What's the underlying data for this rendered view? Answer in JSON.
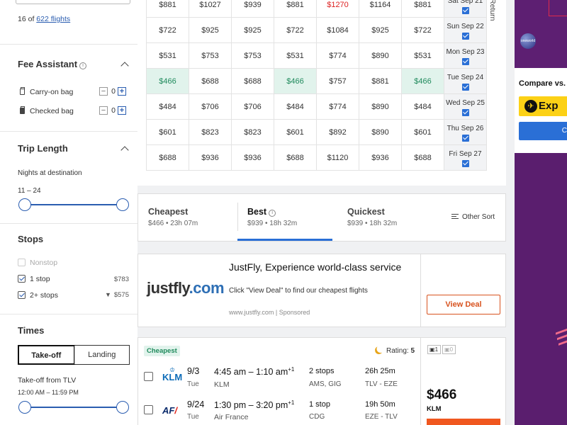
{
  "sidebar": {
    "count": {
      "shown": "16",
      "of": "of",
      "total": "622 flights"
    },
    "fee_assistant": {
      "title": "Fee Assistant",
      "carry_on": {
        "label": "Carry-on bag",
        "value": "0"
      },
      "checked": {
        "label": "Checked bag",
        "value": "0"
      }
    },
    "trip_length": {
      "title": "Trip Length",
      "label": "Nights at destination",
      "range": "11 – 24",
      "min_level": 0.0,
      "max_level": 1.0
    },
    "stops": {
      "title": "Stops",
      "items": [
        {
          "label": "Nonstop",
          "price": "",
          "checked": false,
          "disabled": true
        },
        {
          "label": "1 stop",
          "price": "$783",
          "checked": true,
          "disabled": false
        },
        {
          "label": "2+ stops",
          "price": "$575",
          "checked": true,
          "disabled": false,
          "price_icon": "filter-icon"
        }
      ]
    },
    "times": {
      "title": "Times",
      "tabs": [
        "Take-off",
        "Landing"
      ],
      "active_tab": "Take-off",
      "takeoff_label": "Take-off from TLV",
      "takeoff_range": "12:00 AM – 11:59 PM"
    }
  },
  "grid": {
    "axis_label": "Return",
    "rows": [
      {
        "date": "Sat Sep 21",
        "prices": [
          "$881",
          "$1027",
          "$939",
          "$881",
          "$1270",
          "$1164",
          "$881"
        ]
      },
      {
        "date": "Sun Sep 22",
        "prices": [
          "$722",
          "$925",
          "$925",
          "$722",
          "$1084",
          "$925",
          "$722"
        ]
      },
      {
        "date": "Mon Sep 23",
        "prices": [
          "$531",
          "$753",
          "$753",
          "$531",
          "$774",
          "$890",
          "$531"
        ]
      },
      {
        "date": "Tue Sep 24",
        "prices": [
          "$466",
          "$688",
          "$688",
          "$466",
          "$757",
          "$881",
          "$466"
        ]
      },
      {
        "date": "Wed Sep 25",
        "prices": [
          "$484",
          "$706",
          "$706",
          "$484",
          "$774",
          "$890",
          "$484"
        ]
      },
      {
        "date": "Thu Sep 26",
        "prices": [
          "$601",
          "$823",
          "$823",
          "$601",
          "$892",
          "$890",
          "$601"
        ]
      },
      {
        "date": "Fri Sep 27",
        "prices": [
          "$688",
          "$936",
          "$936",
          "$688",
          "$1120",
          "$936",
          "$688"
        ]
      }
    ],
    "highlight_low": "$466",
    "highlight_high": "$1270",
    "colors": {
      "low_bg": "#e1f3ec",
      "low_text": "#1f8a5c",
      "high_text": "#dd2222"
    }
  },
  "sort": {
    "tabs": [
      {
        "name": "Cheapest",
        "sub": "$466 • 23h 07m"
      },
      {
        "name": "Best",
        "sub": "$939 • 18h 32m"
      },
      {
        "name": "Quickest",
        "sub": "$939 • 18h 32m"
      }
    ],
    "active": "Best",
    "other": "Other Sort"
  },
  "ad": {
    "logo_main": "justfly",
    "logo_suffix": ".com",
    "title": "JustFly, Experience world-class service",
    "desc": "Click \"View Deal\" to find our cheapest flights",
    "url": "www.justfly.com",
    "sep": "|",
    "sponsored": "Sponsored",
    "button": "View Deal"
  },
  "flight": {
    "badge": "Cheapest",
    "rating_label": "Rating:",
    "rating_value": "5",
    "bags": {
      "carry": "1",
      "checked": "0"
    },
    "legs": [
      {
        "logo": "KLM",
        "date": "9/3",
        "day": "Tue",
        "time": "4:45 am – 1:10 am",
        "plus": "+1",
        "airline": "KLM",
        "stops": "2 stops",
        "via": "AMS, GIG",
        "duration": "26h 25m",
        "route": "TLV - EZE"
      },
      {
        "logo": "AF",
        "date": "9/24",
        "day": "Tue",
        "time": "1:30 pm – 3:20 pm",
        "plus": "+1",
        "airline": "Air France",
        "stops": "1 stop",
        "via": "CDG",
        "duration": "19h 50m",
        "route": "EZE - TLV"
      }
    ],
    "price": "$466",
    "price_airline": "KLM"
  },
  "right_ads": {
    "oneworld": "oneworld",
    "compare": "Compare vs.",
    "compare_brand": "Exp",
    "compare_btn": "C"
  }
}
